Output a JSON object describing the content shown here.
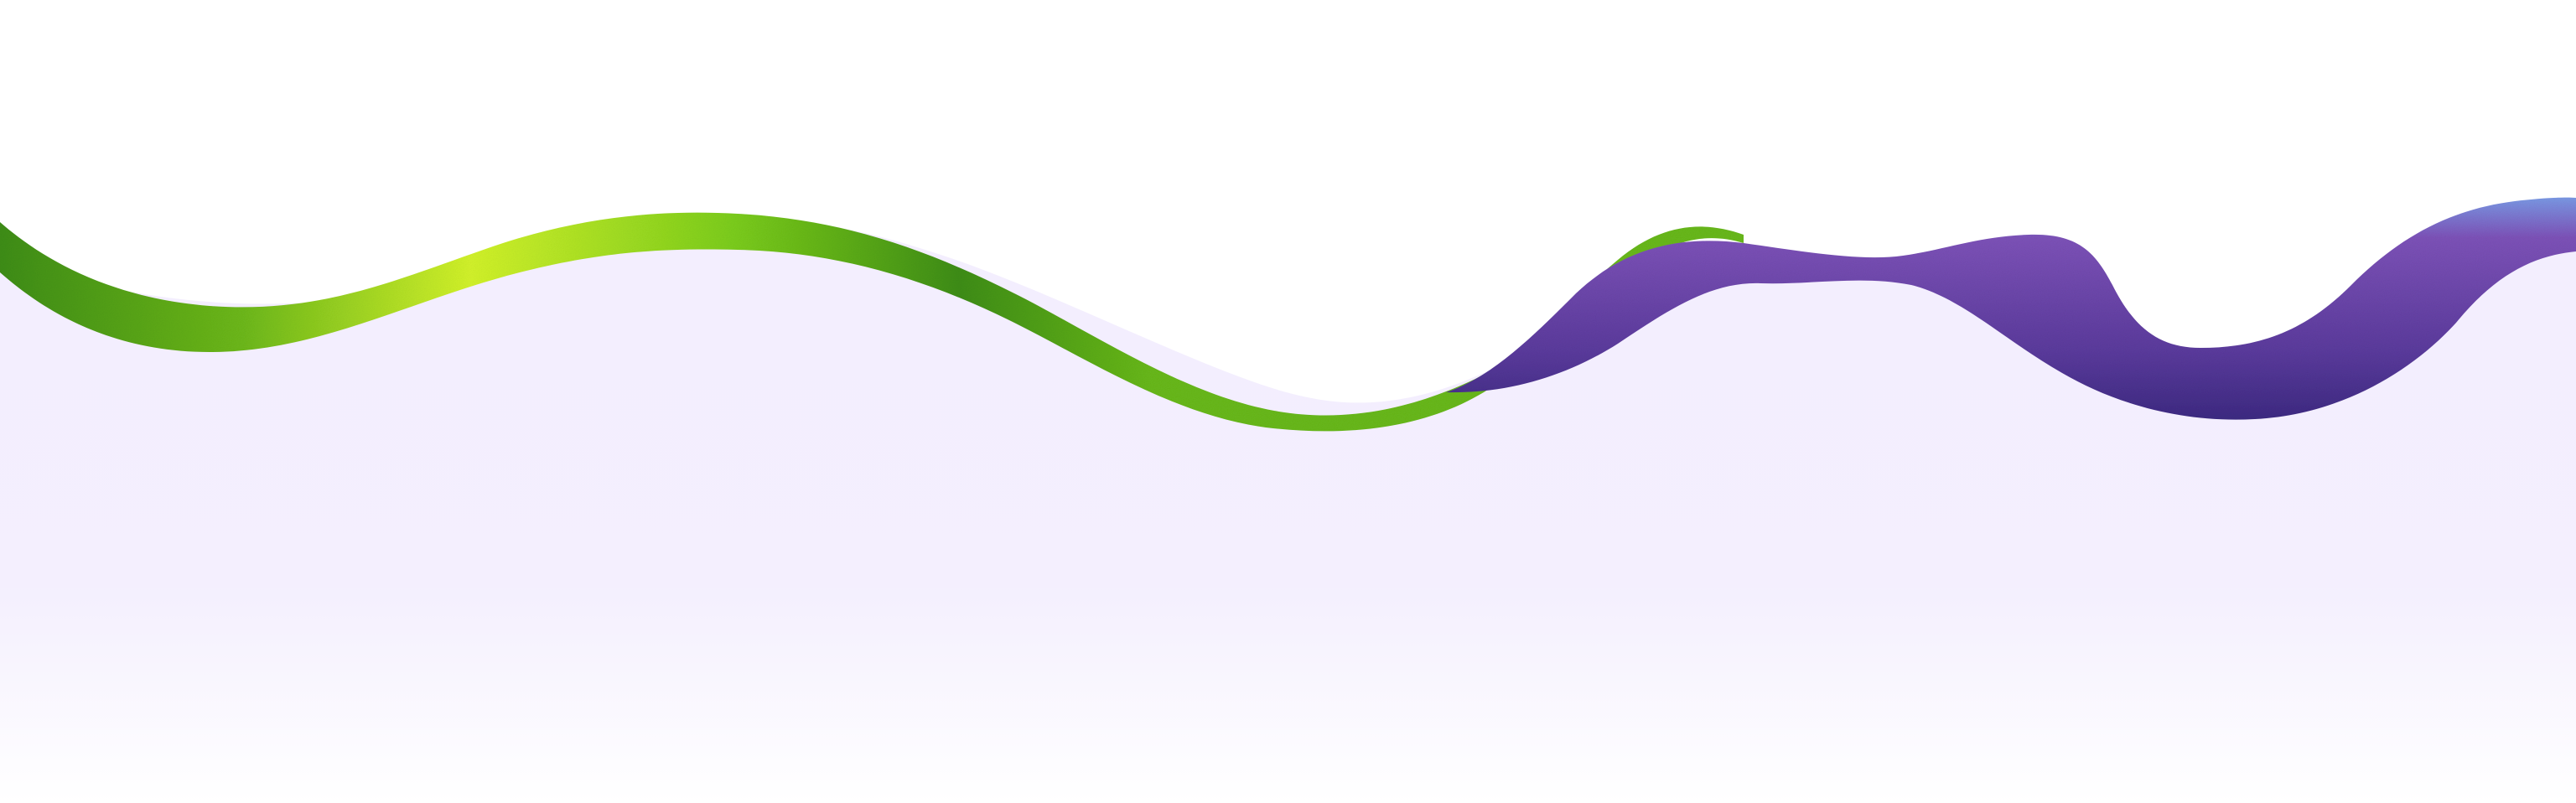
{
  "artwork": {
    "icon": "ribbon-wave-illustration",
    "colors": {
      "background": "#ffffff",
      "lavender_fill": "#f3eefe",
      "green_ribbon_light": "#d2f22a",
      "green_ribbon_mid": "#7ccd1b",
      "green_ribbon_dark": "#3e8d14",
      "purple_ribbon_highlight": "#7a98e4",
      "purple_ribbon_mid": "#7d52b8",
      "purple_ribbon_dark": "#3d2a82"
    }
  }
}
